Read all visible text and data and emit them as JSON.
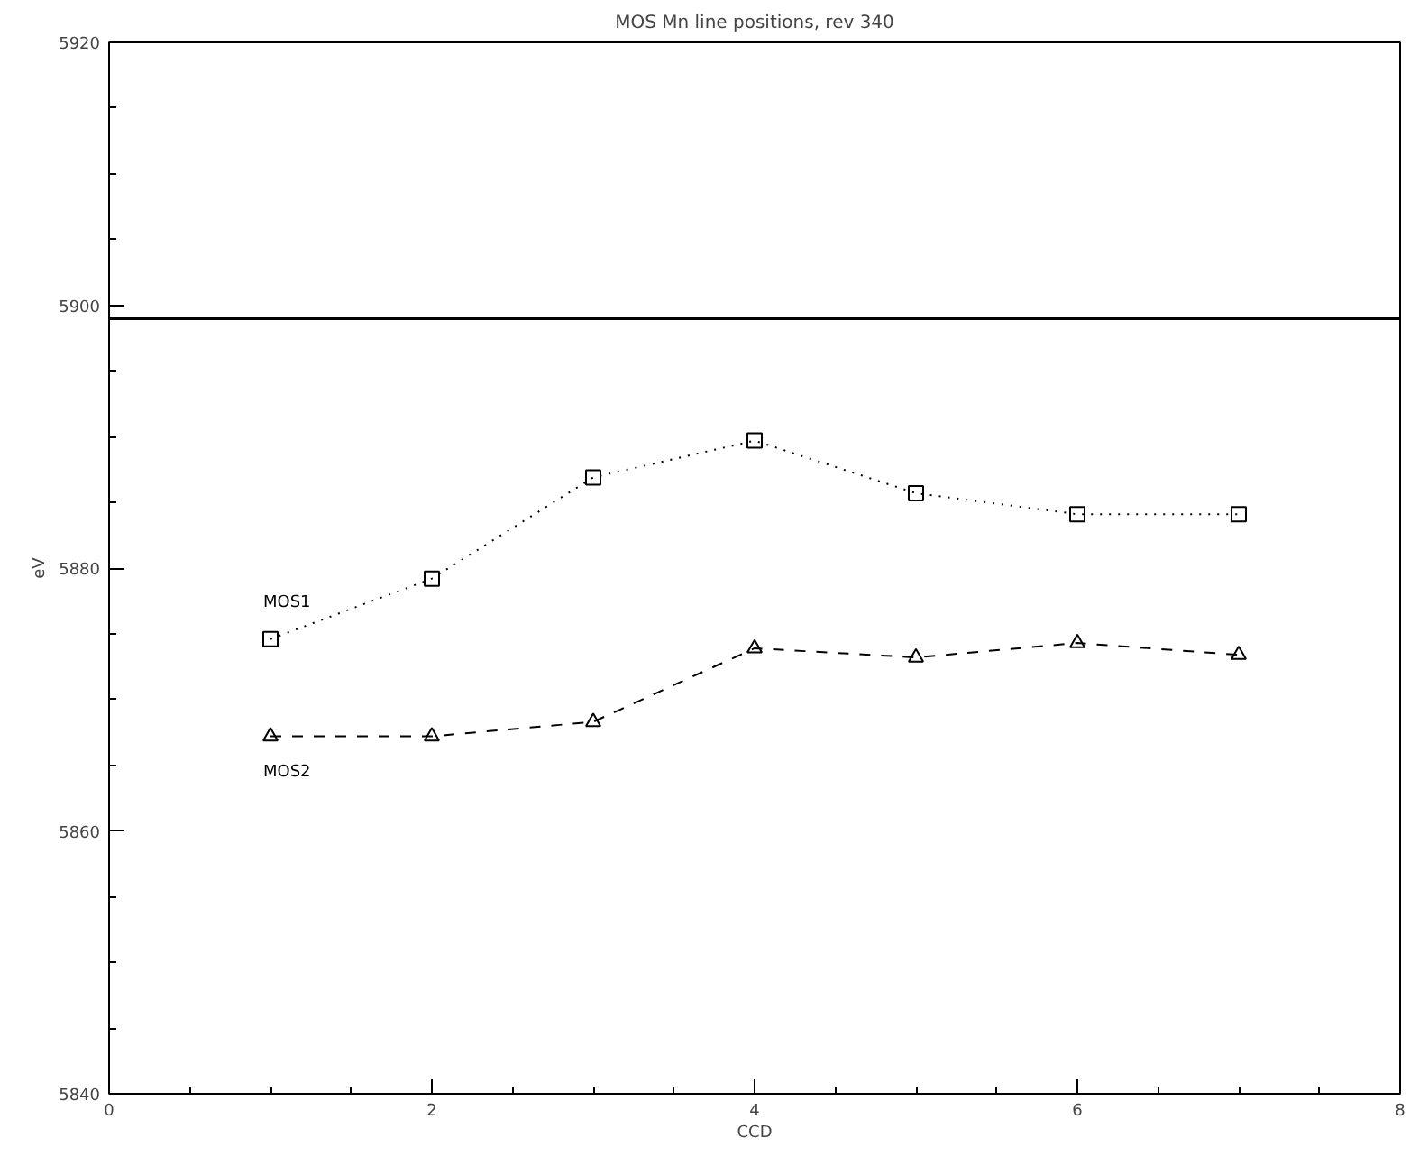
{
  "chart_data": {
    "type": "line",
    "title": "MOS Mn line positions, rev 340",
    "xlabel": "CCD",
    "ylabel": "eV",
    "x": [
      1,
      2,
      3,
      4,
      5,
      6,
      7
    ],
    "series": [
      {
        "name": "MOS1",
        "color": "#000000",
        "marker": "square",
        "line_style": "dotted",
        "values": [
          5874.6,
          5879.2,
          5886.9,
          5889.7,
          5885.7,
          5884.1,
          5884.1
        ]
      },
      {
        "name": "MOS2",
        "color": "#000000",
        "marker": "triangle",
        "line_style": "dashed",
        "values": [
          5867.2,
          5867.2,
          5868.3,
          5873.9,
          5873.2,
          5874.3,
          5873.4
        ]
      }
    ],
    "xlim": [
      0,
      8
    ],
    "xticks": [
      0,
      2,
      4,
      6,
      8
    ],
    "ylim": [
      5840,
      5920
    ],
    "yticks": [
      5840,
      5860,
      5880,
      5900,
      5920
    ],
    "ref_lines": [
      {
        "axis": "y",
        "value": 5899,
        "label": null,
        "color": "#000000",
        "line_style": "solid"
      }
    ],
    "grid": false
  }
}
